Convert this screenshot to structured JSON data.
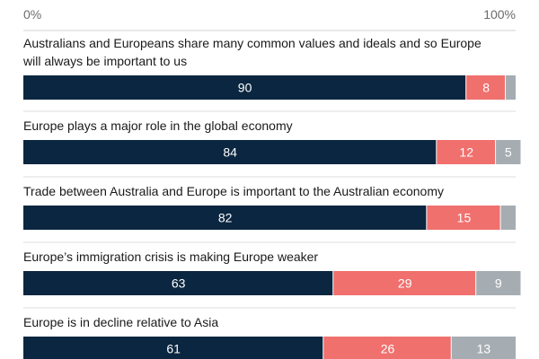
{
  "chart_data": {
    "type": "bar",
    "orientation": "horizontal",
    "stacked": true,
    "xlim": [
      0,
      100
    ],
    "x_ticks": [
      "0%",
      "100%"
    ],
    "colors": [
      "#0b2640",
      "#f0706e",
      "#a6adb2"
    ],
    "grid": false,
    "legend": "none",
    "categories": [
      "Australians and Europeans share many common values and ideals and so Europe will always be important to us",
      "Europe plays a major role in the global economy",
      "Trade between Australia and Europe is important to the Australian economy",
      "Europe’s immigration crisis is making Europe weaker",
      "Europe is in decline relative to Asia"
    ],
    "series": [
      {
        "values": [
          90,
          84,
          82,
          63,
          61
        ],
        "labels": [
          "90",
          "84",
          "82",
          "63",
          "61"
        ]
      },
      {
        "values": [
          8,
          12,
          15,
          29,
          26
        ],
        "labels": [
          "8",
          "12",
          "15",
          "29",
          "26"
        ]
      },
      {
        "values": [
          2,
          5,
          3,
          9,
          13
        ],
        "labels": [
          "",
          "5",
          "",
          "9",
          "13"
        ]
      }
    ]
  }
}
